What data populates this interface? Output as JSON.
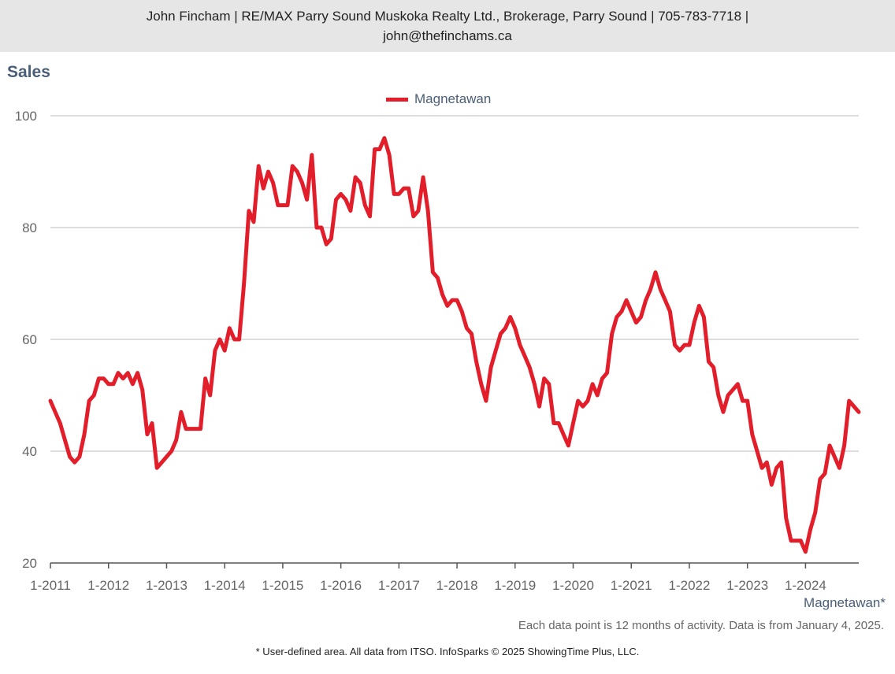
{
  "header": {
    "line1": "John Fincham | RE/MAX Parry Sound Muskoka Realty Ltd., Brokerage, Parry Sound | 705-783-7718 |",
    "line2": "john@thefinchams.ca"
  },
  "colors": {
    "series": "#e31e2b",
    "grid": "#bbbbbb",
    "axis": "#555555"
  },
  "region_label": "Magnetawan*",
  "note": "Each data point is 12 months of activity. Data is from January 4, 2025.",
  "footer": "* User-defined area. All data from ITSO. InfoSparks © 2025 ShowingTime Plus, LLC.",
  "chart_data": {
    "type": "line",
    "title": "Sales",
    "xlabel": "",
    "ylabel": "",
    "ylim": [
      20,
      100
    ],
    "yticks": [
      20,
      40,
      60,
      80,
      100
    ],
    "xlim": [
      "2011-01",
      "2024-12"
    ],
    "xticks": [
      "1-2011",
      "1-2012",
      "1-2013",
      "1-2014",
      "1-2015",
      "1-2016",
      "1-2017",
      "1-2018",
      "1-2019",
      "1-2020",
      "1-2021",
      "1-2022",
      "1-2023",
      "1-2024"
    ],
    "grid": true,
    "legend_position": "top-center",
    "x": [
      "2011-01",
      "2011-02",
      "2011-03",
      "2011-04",
      "2011-05",
      "2011-06",
      "2011-07",
      "2011-08",
      "2011-09",
      "2011-10",
      "2011-11",
      "2011-12",
      "2012-01",
      "2012-02",
      "2012-03",
      "2012-04",
      "2012-05",
      "2012-06",
      "2012-07",
      "2012-08",
      "2012-09",
      "2012-10",
      "2012-11",
      "2012-12",
      "2013-01",
      "2013-02",
      "2013-03",
      "2013-04",
      "2013-05",
      "2013-06",
      "2013-07",
      "2013-08",
      "2013-09",
      "2013-10",
      "2013-11",
      "2013-12",
      "2014-01",
      "2014-02",
      "2014-03",
      "2014-04",
      "2014-05",
      "2014-06",
      "2014-07",
      "2014-08",
      "2014-09",
      "2014-10",
      "2014-11",
      "2014-12",
      "2015-01",
      "2015-02",
      "2015-03",
      "2015-04",
      "2015-05",
      "2015-06",
      "2015-07",
      "2015-08",
      "2015-09",
      "2015-10",
      "2015-11",
      "2015-12",
      "2016-01",
      "2016-02",
      "2016-03",
      "2016-04",
      "2016-05",
      "2016-06",
      "2016-07",
      "2016-08",
      "2016-09",
      "2016-10",
      "2016-11",
      "2016-12",
      "2017-01",
      "2017-02",
      "2017-03",
      "2017-04",
      "2017-05",
      "2017-06",
      "2017-07",
      "2017-08",
      "2017-09",
      "2017-10",
      "2017-11",
      "2017-12",
      "2018-01",
      "2018-02",
      "2018-03",
      "2018-04",
      "2018-05",
      "2018-06",
      "2018-07",
      "2018-08",
      "2018-09",
      "2018-10",
      "2018-11",
      "2018-12",
      "2019-01",
      "2019-02",
      "2019-03",
      "2019-04",
      "2019-05",
      "2019-06",
      "2019-07",
      "2019-08",
      "2019-09",
      "2019-10",
      "2019-11",
      "2019-12",
      "2020-01",
      "2020-02",
      "2020-03",
      "2020-04",
      "2020-05",
      "2020-06",
      "2020-07",
      "2020-08",
      "2020-09",
      "2020-10",
      "2020-11",
      "2020-12",
      "2021-01",
      "2021-02",
      "2021-03",
      "2021-04",
      "2021-05",
      "2021-06",
      "2021-07",
      "2021-08",
      "2021-09",
      "2021-10",
      "2021-11",
      "2021-12",
      "2022-01",
      "2022-02",
      "2022-03",
      "2022-04",
      "2022-05",
      "2022-06",
      "2022-07",
      "2022-08",
      "2022-09",
      "2022-10",
      "2022-11",
      "2022-12",
      "2023-01",
      "2023-02",
      "2023-03",
      "2023-04",
      "2023-05",
      "2023-06",
      "2023-07",
      "2023-08",
      "2023-09",
      "2023-10",
      "2023-11",
      "2023-12",
      "2024-01",
      "2024-02",
      "2024-03",
      "2024-04",
      "2024-05",
      "2024-06",
      "2024-07",
      "2024-08",
      "2024-09",
      "2024-10",
      "2024-11",
      "2024-12"
    ],
    "series": [
      {
        "name": "Magnetawan",
        "values": [
          49,
          47,
          45,
          42,
          39,
          38,
          39,
          43,
          49,
          50,
          53,
          53,
          52,
          52,
          54,
          53,
          54,
          52,
          54,
          51,
          43,
          45,
          37,
          38,
          39,
          40,
          42,
          47,
          44,
          44,
          44,
          44,
          53,
          50,
          58,
          60,
          58,
          62,
          60,
          60,
          70,
          83,
          81,
          91,
          87,
          90,
          88,
          84,
          84,
          84,
          91,
          90,
          88,
          85,
          93,
          80,
          80,
          77,
          78,
          85,
          86,
          85,
          83,
          89,
          88,
          84,
          82,
          94,
          94,
          96,
          93,
          86,
          86,
          87,
          87,
          82,
          83,
          89,
          83,
          72,
          71,
          68,
          66,
          67,
          67,
          65,
          62,
          61,
          56,
          52,
          49,
          55,
          58,
          61,
          62,
          64,
          62,
          59,
          57,
          55,
          52,
          48,
          53,
          52,
          45,
          45,
          43,
          41,
          45,
          49,
          48,
          49,
          52,
          50,
          53,
          54,
          61,
          64,
          65,
          67,
          65,
          63,
          64,
          67,
          69,
          72,
          69,
          67,
          65,
          59,
          58,
          59,
          59,
          63,
          66,
          64,
          56,
          55,
          50,
          47,
          50,
          51,
          52,
          49,
          49,
          43,
          40,
          37,
          38,
          34,
          37,
          38,
          28,
          24,
          24,
          24,
          22,
          26,
          29,
          35,
          36,
          41,
          39,
          37,
          41,
          49,
          48,
          47
        ]
      }
    ]
  }
}
